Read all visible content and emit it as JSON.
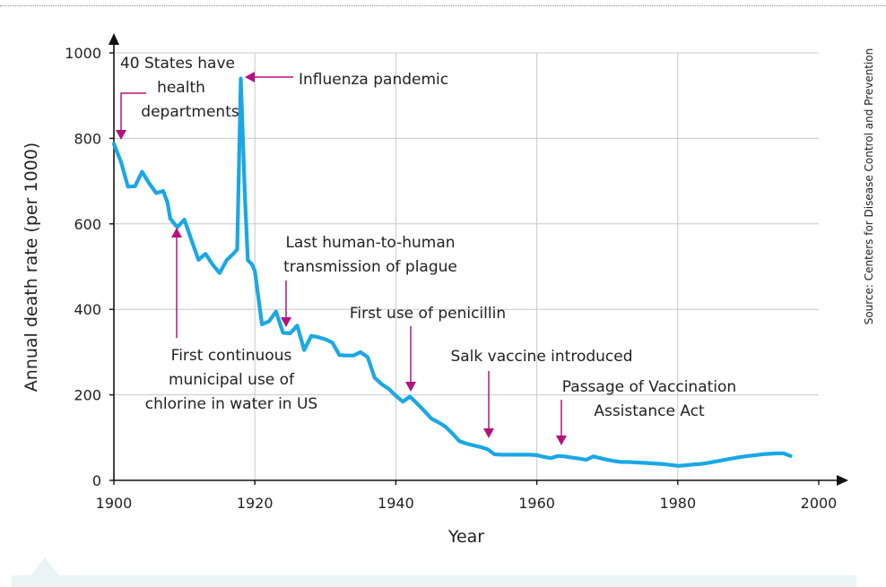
{
  "source_text": "Source:  Centers for Disease Control and Prevention",
  "colors": {
    "line": "#1aa7e6",
    "annotation": "#b5137e",
    "grid": "#c8c8c8"
  },
  "chart_data": {
    "type": "line",
    "title": "",
    "xlabel": "Year",
    "ylabel": "Annual death rate (per 1000)",
    "xlim": [
      1900,
      2000
    ],
    "ylim": [
      0,
      1000
    ],
    "xticks": [
      1900,
      1920,
      1940,
      1960,
      1980,
      2000
    ],
    "yticks": [
      0,
      200,
      400,
      600,
      800,
      1000
    ],
    "grid": true,
    "series": [
      {
        "name": "",
        "x": [
          1900,
          1901,
          1902,
          1903,
          1904,
          1905,
          1906,
          1907,
          1907.6,
          1908,
          1909,
          1910,
          1911,
          1912,
          1913,
          1914,
          1915,
          1916,
          1917,
          1917.5,
          1918,
          1918.6,
          1919,
          1919.6,
          1920,
          1921,
          1922,
          1923,
          1924,
          1925,
          1926,
          1927,
          1928,
          1929,
          1930,
          1931,
          1932,
          1933,
          1934,
          1935,
          1936,
          1937,
          1938,
          1939,
          1940,
          1941,
          1942,
          1943,
          1944,
          1945,
          1946,
          1947,
          1948,
          1949,
          1950,
          1951,
          1952,
          1953,
          1954,
          1955,
          1956,
          1957,
          1958,
          1959,
          1960,
          1961,
          1962,
          1963,
          1964,
          1965,
          1966,
          1967,
          1968,
          1969,
          1970,
          1971,
          1972,
          1973,
          1974,
          1975,
          1976,
          1977,
          1978,
          1979,
          1980,
          1981,
          1982,
          1983,
          1984,
          1985,
          1986,
          1987,
          1988,
          1989,
          1990,
          1991,
          1992,
          1993,
          1994,
          1995,
          1996
        ],
        "y": [
          787,
          745,
          687,
          688,
          722,
          695,
          672,
          677,
          650,
          612,
          592,
          610,
          562,
          516,
          530,
          505,
          485,
          515,
          531,
          540,
          940,
          660,
          515,
          505,
          490,
          365,
          372,
          395,
          345,
          344,
          362,
          305,
          338,
          335,
          330,
          322,
          293,
          292,
          292,
          300,
          288,
          240,
          225,
          214,
          198,
          184,
          196,
          180,
          163,
          145,
          136,
          126,
          110,
          92,
          86,
          82,
          78,
          73,
          61,
          60,
          60,
          60,
          60,
          60,
          59,
          55,
          52,
          57,
          56,
          53,
          51,
          48,
          56,
          52,
          48,
          45,
          43,
          43,
          42,
          41,
          40,
          39,
          38,
          36,
          34,
          35,
          37,
          38,
          40,
          43,
          46,
          49,
          52,
          55,
          57,
          59,
          61,
          62,
          63,
          63,
          57
        ]
      }
    ],
    "annotations": [
      {
        "id": "health-departments",
        "lines": [
          "40 States have",
          "health",
          "departments"
        ],
        "x": 1901,
        "y": 787
      },
      {
        "id": "influenza",
        "lines": [
          "Influenza pandemic"
        ],
        "x": 1918,
        "y": 940
      },
      {
        "id": "plague",
        "lines": [
          "Last human-to-human",
          "transmission of plague"
        ],
        "x": 1924,
        "y": 345
      },
      {
        "id": "chlorine",
        "lines": [
          "First continuous",
          "municipal use of",
          "chlorine in water in US"
        ],
        "x": 1909,
        "y": 592
      },
      {
        "id": "penicillin",
        "lines": [
          "First use of penicillin"
        ],
        "x": 1942,
        "y": 190
      },
      {
        "id": "salk",
        "lines": [
          "Salk vaccine introduced"
        ],
        "x": 1953,
        "y": 70
      },
      {
        "id": "vaccination-act",
        "lines": [
          "Passage of Vaccination",
          "Assistance Act"
        ],
        "x": 1963,
        "y": 57
      }
    ]
  }
}
